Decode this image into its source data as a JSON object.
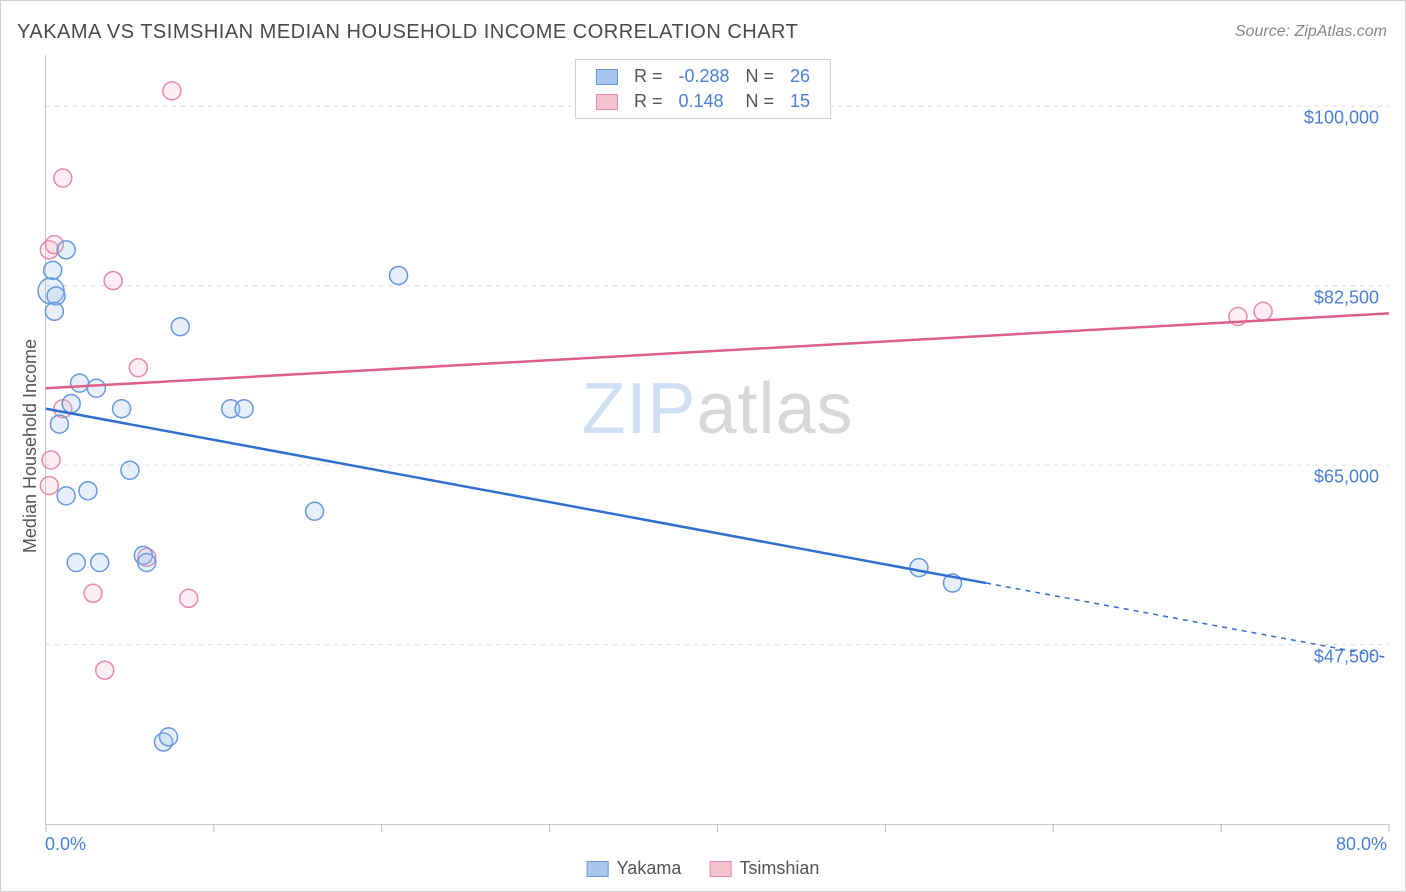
{
  "title": "YAKAMA VS TSIMSHIAN MEDIAN HOUSEHOLD INCOME CORRELATION CHART",
  "source": "Source: ZipAtlas.com",
  "watermark_light": "ZIP",
  "watermark_dark": "atlas",
  "y_axis_title": "Median Household Income",
  "chart": {
    "type": "scatter",
    "xlim": [
      0,
      80
    ],
    "ylim": [
      30000,
      105000
    ],
    "x_unit": "%",
    "x_start_label": "0.0%",
    "x_end_label": "80.0%",
    "x_ticks": [
      0,
      10,
      20,
      30,
      40,
      50,
      60,
      70,
      80
    ],
    "y_gridlines": [
      47500,
      65000,
      82500,
      100000
    ],
    "y_tick_labels": [
      "$47,500",
      "$65,000",
      "$82,500",
      "$100,000"
    ],
    "background_color": "#ffffff",
    "grid_color": "#dcdcdc",
    "axis_color": "#c8c8c8",
    "marker_radius": 9,
    "marker_stroke_width": 1.5,
    "marker_fill_opacity": 0.28,
    "line_width": 2.5
  },
  "series": {
    "yakama": {
      "label": "Yakama",
      "color_stroke": "#6699e0",
      "color_fill": "#a8c6ee",
      "line_color": "#2f6fd0",
      "r_label": "R =",
      "r_value": "-0.288",
      "n_label": "N =",
      "n_value": "26",
      "trend": {
        "x1": 0,
        "y1": 70500,
        "x2": 56,
        "y2": 53500,
        "x2_dash": 80,
        "y2_dash": 46200
      },
      "points": [
        {
          "x": 0.3,
          "y": 82000,
          "r": 13
        },
        {
          "x": 0.6,
          "y": 81500
        },
        {
          "x": 0.4,
          "y": 84000
        },
        {
          "x": 1.2,
          "y": 86000
        },
        {
          "x": 0.5,
          "y": 80000
        },
        {
          "x": 1.5,
          "y": 71000
        },
        {
          "x": 3.0,
          "y": 72500
        },
        {
          "x": 4.5,
          "y": 70500
        },
        {
          "x": 2.0,
          "y": 73000
        },
        {
          "x": 5.0,
          "y": 64500
        },
        {
          "x": 2.5,
          "y": 62500
        },
        {
          "x": 1.2,
          "y": 62000
        },
        {
          "x": 8.0,
          "y": 78500
        },
        {
          "x": 21.0,
          "y": 83500
        },
        {
          "x": 11.0,
          "y": 70500
        },
        {
          "x": 11.8,
          "y": 70500
        },
        {
          "x": 16.0,
          "y": 60500
        },
        {
          "x": 52.0,
          "y": 55000
        },
        {
          "x": 54.0,
          "y": 53500
        },
        {
          "x": 1.8,
          "y": 55500
        },
        {
          "x": 3.2,
          "y": 55500
        },
        {
          "x": 5.8,
          "y": 56200
        },
        {
          "x": 6.0,
          "y": 55500
        },
        {
          "x": 7.0,
          "y": 38000
        },
        {
          "x": 7.3,
          "y": 38500
        },
        {
          "x": 0.8,
          "y": 69000
        }
      ]
    },
    "tsimshian": {
      "label": "Tsimshian",
      "color_stroke": "#e88ba5",
      "color_fill": "#f5c2d0",
      "line_color": "#e05f85",
      "r_label": "R =",
      "r_value": "0.148",
      "n_label": "N =",
      "n_value": "15",
      "trend": {
        "x1": 0,
        "y1": 72500,
        "x2": 80,
        "y2": 79800
      },
      "points": [
        {
          "x": 7.5,
          "y": 101500
        },
        {
          "x": 1.0,
          "y": 93000
        },
        {
          "x": 0.2,
          "y": 86000
        },
        {
          "x": 4.0,
          "y": 83000
        },
        {
          "x": 5.5,
          "y": 74500
        },
        {
          "x": 1.0,
          "y": 70500
        },
        {
          "x": 0.3,
          "y": 65500
        },
        {
          "x": 0.2,
          "y": 63000
        },
        {
          "x": 2.8,
          "y": 52500
        },
        {
          "x": 6.0,
          "y": 56000
        },
        {
          "x": 8.5,
          "y": 52000
        },
        {
          "x": 3.5,
          "y": 45000
        },
        {
          "x": 71.0,
          "y": 79500
        },
        {
          "x": 72.5,
          "y": 80000
        },
        {
          "x": 0.5,
          "y": 86500
        }
      ]
    }
  }
}
